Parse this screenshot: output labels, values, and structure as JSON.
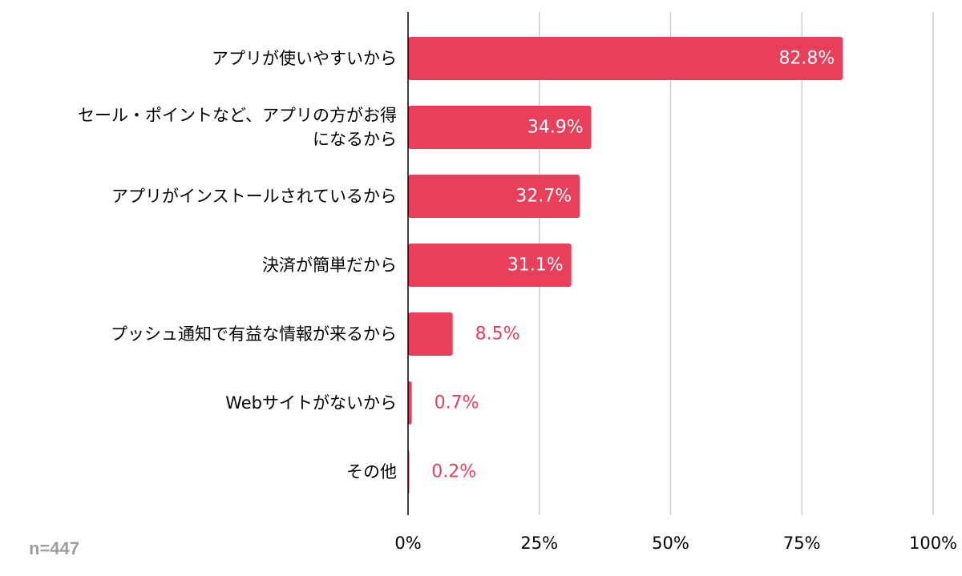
{
  "chart_data": {
    "type": "bar",
    "orientation": "horizontal",
    "categories": [
      [
        "アプリが使いやすいから"
      ],
      [
        "セール・ポイントなど、アプリの方がお得",
        "になるから"
      ],
      [
        "アプリがインストールされているから"
      ],
      [
        "決済が簡単だから"
      ],
      [
        "プッシュ通知で有益な情報が来るから"
      ],
      [
        "Webサイトがないから"
      ],
      [
        "その他"
      ]
    ],
    "values": [
      82.8,
      34.9,
      32.7,
      31.1,
      8.5,
      0.7,
      0.2
    ],
    "value_labels": [
      "82.8%",
      "34.9%",
      "32.7%",
      "31.1%",
      "8.5%",
      "0.7%",
      "0.2%"
    ],
    "x_ticks": [
      0,
      25,
      50,
      75,
      100
    ],
    "x_tick_labels": [
      "0%",
      "25%",
      "50%",
      "75%",
      "100%"
    ],
    "xlim": [
      0,
      100
    ],
    "grid": true,
    "bar_color": "#e8405a",
    "inside_label_color": "#ffffff",
    "outside_label_color": "#e8405a",
    "grid_color": "#cccccc",
    "axis_color": "#000000"
  },
  "footer": {
    "sample_size": "n=447"
  }
}
